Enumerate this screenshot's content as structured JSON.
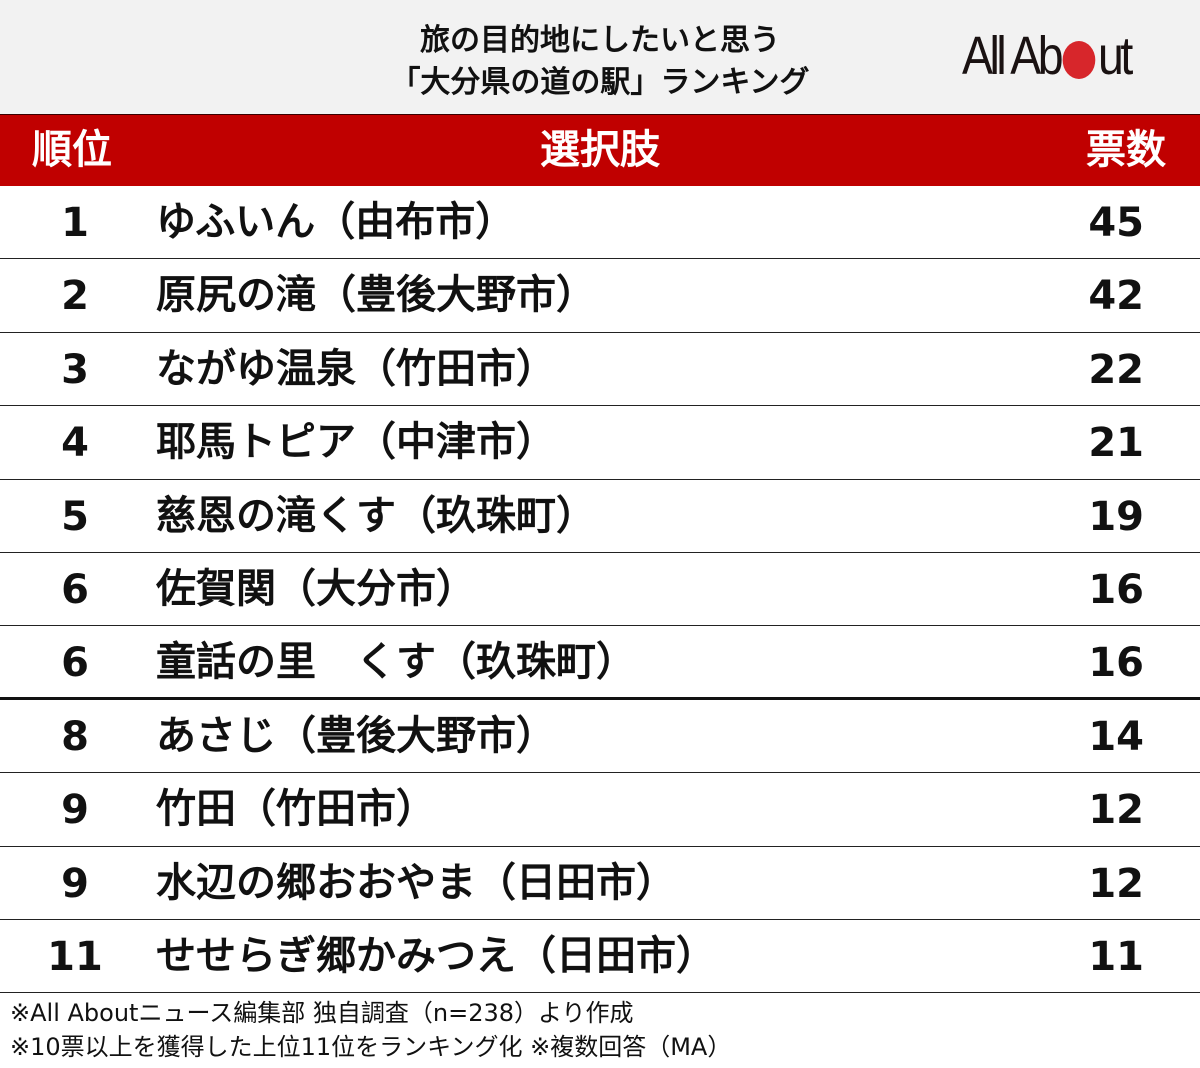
{
  "title": {
    "line1": "旅の目的地にしたいと思う",
    "line2": "「大分県の道の駅」ランキング"
  },
  "logo": {
    "left": "All Ab",
    "right": "ut",
    "dot_color": "#d7262b"
  },
  "colors": {
    "header_bg": "#c00000",
    "title_bg": "#f2f2f2"
  },
  "table": {
    "headers": {
      "rank": "順位",
      "choice": "選択肢",
      "votes": "票数"
    },
    "rows": [
      {
        "rank": "1",
        "name": "ゆふいん（由布市）",
        "votes": "45"
      },
      {
        "rank": "2",
        "name": "原尻の滝（豊後大野市）",
        "votes": "42"
      },
      {
        "rank": "3",
        "name": "ながゆ温泉（竹田市）",
        "votes": "22"
      },
      {
        "rank": "4",
        "name": "耶馬トピア（中津市）",
        "votes": "21"
      },
      {
        "rank": "5",
        "name": "慈恩の滝くす（玖珠町）",
        "votes": "19"
      },
      {
        "rank": "6",
        "name": "佐賀関（大分市）",
        "votes": "16"
      },
      {
        "rank": "6",
        "name": "童話の里　くす（玖珠町）",
        "votes": "16"
      },
      {
        "rank": "8",
        "name": "あさじ（豊後大野市）",
        "votes": "14"
      },
      {
        "rank": "9",
        "name": "竹田（竹田市）",
        "votes": "12"
      },
      {
        "rank": "9",
        "name": "水辺の郷おおやま（日田市）",
        "votes": "12"
      },
      {
        "rank": "11",
        "name": "せせらぎ郷かみつえ（日田市）",
        "votes": "11"
      }
    ]
  },
  "notes": [
    "※All Aboutニュース編集部 独自調査（n=238）より作成",
    "※10票以上を獲得した上位11位をランキング化 ※複数回答（MA）"
  ],
  "chart_data": {
    "type": "table",
    "title": "旅の目的地にしたいと思う「大分県の道の駅」ランキング",
    "columns": [
      "順位",
      "選択肢",
      "票数"
    ],
    "categories": [
      "ゆふいん（由布市）",
      "原尻の滝（豊後大野市）",
      "ながゆ温泉（竹田市）",
      "耶馬トピア（中津市）",
      "慈恩の滝くす（玖珠町）",
      "佐賀関（大分市）",
      "童話の里　くす（玖珠町）",
      "あさじ（豊後大野市）",
      "竹田（竹田市）",
      "水辺の郷おおやま（日田市）",
      "せせらぎ郷かみつえ（日田市）"
    ],
    "ranks": [
      1,
      2,
      3,
      4,
      5,
      6,
      6,
      8,
      9,
      9,
      11
    ],
    "values": [
      45,
      42,
      22,
      21,
      19,
      16,
      16,
      14,
      12,
      12,
      11
    ],
    "n": 238,
    "notes": [
      "複数回答（MA）",
      "10票以上を獲得した上位11位"
    ]
  }
}
